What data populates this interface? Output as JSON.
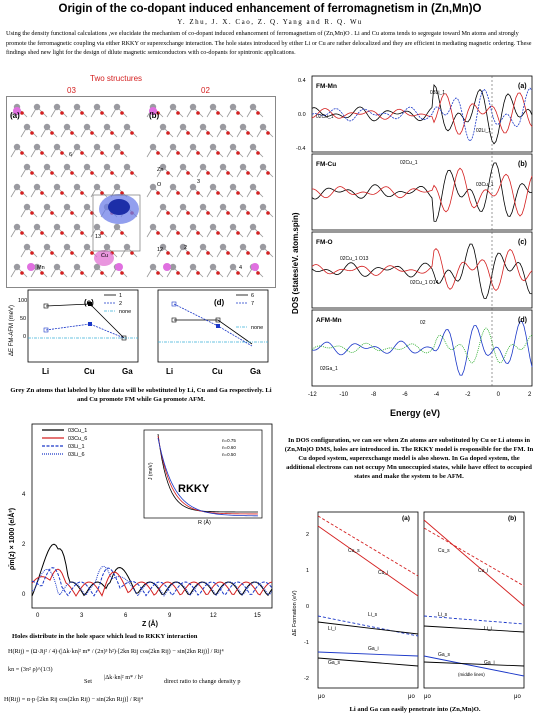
{
  "title": "Origin of the co-dopant induced enhancement of ferromagnetism in (Zn,Mn)O",
  "authors": "Y. Zhu, J. X. Cao, Z. Q. Yang and R. Q. Wu",
  "abstract": "Using the density functional calculations ,we elucidate the mechanism of co-dopant induced enhancement of ferromagnetism of (Zn,Mn)O . Li and Cu atoms tends to segregate toward Mn atoms and strongly promote the ferromagnetic coupling via either RKKY or superexchange interaction. The hole states introduced by either Li or Cu are rather delocalized and they are efficient in mediating magnetic ordering. These findings shed new light for the design of dilute magnetic semiconductors with co-dopants for spintronic applications.",
  "structures": {
    "heading": "Two structures",
    "label_left": "03",
    "label_right": "02",
    "panel_a": "(a)",
    "panel_b": "(b)",
    "atom_labels": [
      "6",
      "Zn",
      "O",
      "13",
      "Cu",
      "Mn",
      "3",
      "2",
      "12",
      "4"
    ]
  },
  "energy_plot": {
    "ylabel": "ΔE FM-AFM (meV)",
    "panel_c": "(c)",
    "panel_d": "(d)",
    "legend_c": [
      "1",
      "2",
      "none"
    ],
    "legend_d": [
      "6",
      "7",
      "none"
    ],
    "x_c": [
      "Li",
      "Cu",
      "Ga"
    ],
    "x_d": [
      "Li",
      "Cu",
      "Ga"
    ],
    "yticks": [
      "100",
      "50",
      "0"
    ]
  },
  "caption_left": "Grey Zn atoms that labeled by blue data will be substituted by Li, Cu and Ga respectively. Li and Cu promote FM while Ga promote AFM.",
  "dos_plot": {
    "ylabel": "DOS (states/eV. atom.spin)",
    "xlabel": "Energy (eV)",
    "panels": [
      {
        "tag": "(a)",
        "name": "FM-Mn",
        "labels": [
          "02Cu_1",
          "03Li_1",
          "02Li_1"
        ]
      },
      {
        "tag": "(b)",
        "name": "FM-Cu",
        "labels": [
          "02Cu_1",
          "03Cu_1"
        ]
      },
      {
        "tag": "(c)",
        "name": "FM-O",
        "labels": [
          "02Cu_1 O13",
          "02Cu_1 O14"
        ]
      },
      {
        "tag": "(d)",
        "name": "AFM-Mn",
        "labels": [
          "02",
          "02Ga_1"
        ]
      }
    ],
    "xticks": [
      "-12",
      "-10",
      "-8",
      "-6",
      "-4",
      "-2",
      "0",
      "2"
    ],
    "yticks_top": [
      "0.4",
      "0.0",
      "-0.4"
    ]
  },
  "rkky_plot": {
    "legend": [
      "03Cu_1",
      "03Cu_6",
      "03Li_1",
      "03Li_6"
    ],
    "tag": "RKKY",
    "ylabel": "ρ̄m(z) × 1000 (e/Å³)",
    "xlabel": "Z (Å)",
    "xticks": [
      "0",
      "3",
      "6",
      "9",
      "12",
      "15"
    ],
    "yticks": [
      "4",
      "2",
      "0"
    ],
    "inset": {
      "ylabel": "J (meV)",
      "xlabel": "R (Å)",
      "legend": [
        "n=0.75",
        "n=0.60",
        "n=0.50"
      ]
    }
  },
  "caption_dos": "In DOS configuration, we can see when Zn atoms are substituted by Cu or Li atoms in (Zn,Mn)O DMS, holes are introduced in. The RKKY model is responsible for the FM. In Cu doped system, superexchange model is also shown. In Ga doped system, the additional electrons can not occupy Mn unoccupied states, while have effect to occupied states and make the system to be AFM.",
  "caption_rkky": "Holes distribute in the hole space which lead to RKKY interaction",
  "formula": {
    "line1": "H(Rij) = (Ω·Jij² / 4)·(|Δk·kn|² m* / (2π)³ ħ²)·[2kn Rij cos(2kn Rij) − sin(2kn Rij)] / Rij⁴",
    "line2": "kn = (3π² ρ)^(1/3)",
    "set": "Set",
    "set_expr": "|Δk·kn|² m* / ħ²",
    "set_note": "direct ratio to change density p",
    "line3": "H(Rij) = α·p·[2kn Rij cos(2kn Rij) − sin(2kn Rij)] / Rij⁴"
  },
  "level_plot": {
    "ylabel": "ΔE Formation (eV)",
    "panel_a": "(a)",
    "panel_b": "(b)",
    "labels_a": [
      "Cu_s",
      "Cu_i",
      "Li_s",
      "Li_i",
      "Ga_i",
      "Ga_s"
    ],
    "labels_b": [
      "Cu_s",
      "Cu_i",
      "Li_s",
      "Li_i",
      "Ga_s",
      "Ga_i"
    ],
    "yticks": [
      "2",
      "1",
      "0",
      "-1",
      "-2"
    ],
    "x_a": [
      "μo",
      "μo"
    ],
    "x_b": [
      "μo",
      "μo"
    ],
    "mid": "(middle lines)"
  },
  "caption_levels": "Li and Ga can easily penetrate into (Zn,Mn)O.",
  "colors": {
    "title_red": "#d42020",
    "blue": "#1a37c8",
    "red": "#d42020",
    "magenta": "#e040e0"
  }
}
